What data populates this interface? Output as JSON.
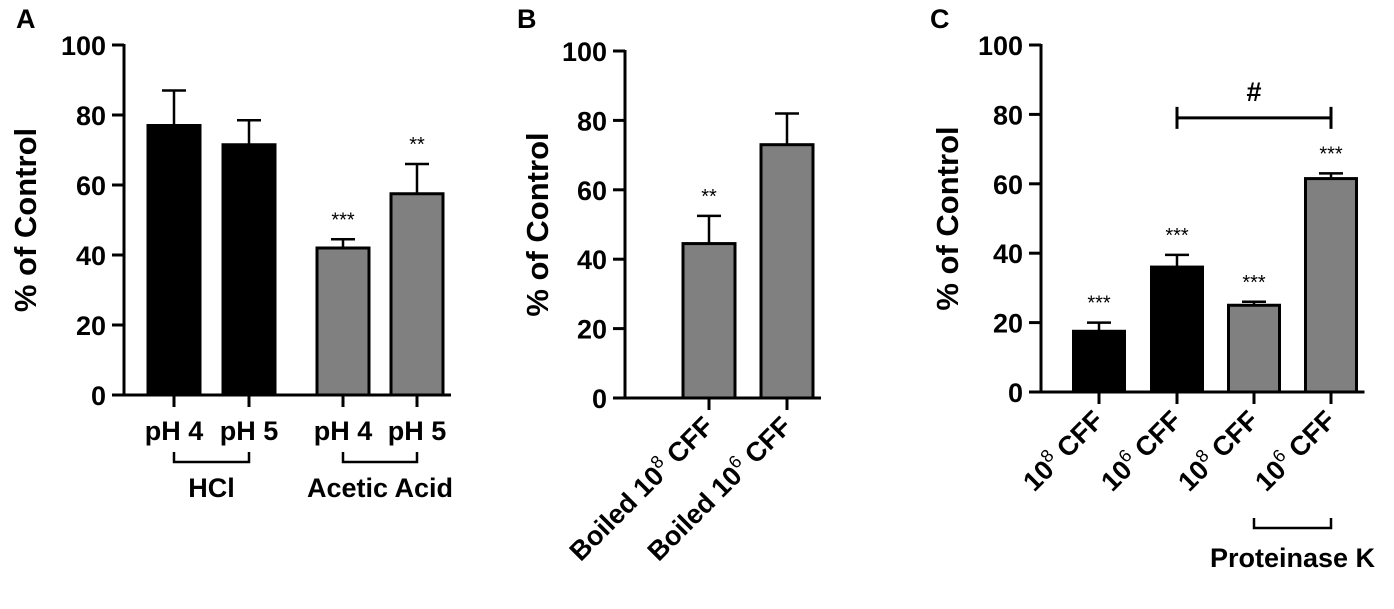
{
  "colors": {
    "black_bar": "#000000",
    "gray_bar": "#808080",
    "axis": "#000000"
  },
  "chart_data": [
    {
      "panel": "A",
      "type": "bar",
      "ylabel": "% of Control",
      "ylim": [
        0,
        100
      ],
      "yticks": [
        "0",
        "20",
        "40",
        "60",
        "80",
        "100"
      ],
      "categories": [
        "pH 4",
        "pH 5",
        "pH 4",
        "pH 5"
      ],
      "values": [
        77,
        71.5,
        42,
        57.5
      ],
      "errors": [
        10,
        7,
        2.5,
        8.5
      ],
      "fills": [
        "black",
        "black",
        "gray",
        "gray"
      ],
      "significance": [
        "",
        "",
        "***",
        "**"
      ],
      "groups": [
        {
          "label": "HCl",
          "from": 0,
          "to": 1
        },
        {
          "label": "Acetic Acid",
          "from": 2,
          "to": 3
        }
      ]
    },
    {
      "panel": "B",
      "type": "bar",
      "ylabel": "% of Control",
      "ylim": [
        0,
        100
      ],
      "yticks": [
        "0",
        "20",
        "40",
        "60",
        "80",
        "100"
      ],
      "categories": [
        {
          "pre": "Boiled 10",
          "sup": "8",
          "post": " CFF"
        },
        {
          "pre": "Boiled 10",
          "sup": "6",
          "post": " CFF"
        }
      ],
      "values": [
        44.5,
        73
      ],
      "errors": [
        8,
        9
      ],
      "fills": [
        "gray",
        "gray"
      ],
      "significance": [
        "**",
        ""
      ]
    },
    {
      "panel": "C",
      "type": "bar",
      "ylabel": "% of Control",
      "ylim": [
        0,
        100
      ],
      "yticks": [
        "0",
        "20",
        "40",
        "60",
        "80",
        "100"
      ],
      "categories": [
        {
          "pre": "10",
          "sup": "8",
          "post": " CFF"
        },
        {
          "pre": "10",
          "sup": "6",
          "post": " CFF"
        },
        {
          "pre": "10",
          "sup": "8",
          "post": " CFF"
        },
        {
          "pre": "10",
          "sup": "6",
          "post": " CFF"
        }
      ],
      "values": [
        17.5,
        36,
        25,
        61.5
      ],
      "errors": [
        2.5,
        3.5,
        1,
        1.5
      ],
      "fills": [
        "black",
        "black",
        "gray",
        "gray"
      ],
      "significance": [
        "***",
        "***",
        "***",
        "***"
      ],
      "groups": [
        {
          "label": "Proteinase K",
          "from": 2,
          "to": 3
        }
      ],
      "comparison": {
        "label": "#",
        "from": 1,
        "to": 3,
        "y": 79
      }
    }
  ]
}
